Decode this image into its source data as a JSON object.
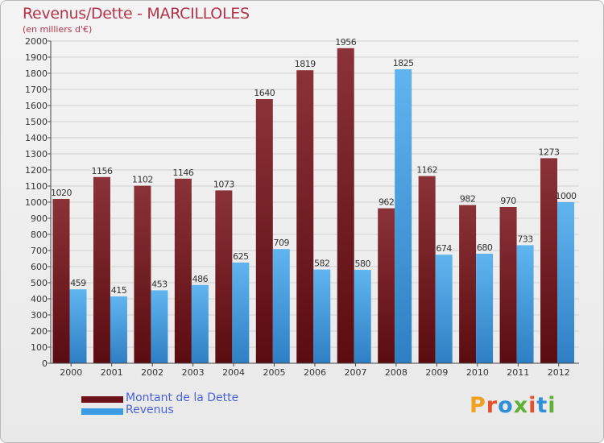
{
  "header": {
    "title": "Revenus/Dette - MARCILLOLES",
    "subtitle": "(en milliers d'€)"
  },
  "legend": {
    "items": [
      {
        "label": "Montant de la Dette",
        "color": "#6b1117"
      },
      {
        "label": "Revenus",
        "color": "#3c9ce3"
      }
    ]
  },
  "logo": {
    "text": "Proxiti",
    "letters": [
      "P",
      "r",
      "o",
      "x",
      "i",
      "t",
      "i"
    ]
  },
  "colors": {
    "title": "#b5344a",
    "debt_top": "#8a3238",
    "debt_bottom": "#5a0c10",
    "revenue_top": "#60b5ef",
    "revenue_bottom": "#2e7fc4",
    "legend_text": "#4a63d8",
    "logo": [
      "#f0a01e",
      "#e8502a",
      "#2f8fd8",
      "#5db133",
      "#e8502a",
      "#2f8fd8",
      "#5db133"
    ]
  },
  "chart_data": {
    "type": "bar",
    "title": "Revenus/Dette - MARCILLOLES",
    "subtitle": "(en milliers d'€)",
    "categories": [
      "2000",
      "2001",
      "2002",
      "2003",
      "2004",
      "2005",
      "2006",
      "2007",
      "2008",
      "2009",
      "2010",
      "2011",
      "2012"
    ],
    "series": [
      {
        "name": "Montant de la Dette",
        "values": [
          1020,
          1156,
          1102,
          1146,
          1073,
          1640,
          1819,
          1956,
          962,
          1162,
          982,
          970,
          1273
        ]
      },
      {
        "name": "Revenus",
        "values": [
          459,
          415,
          453,
          486,
          625,
          709,
          582,
          580,
          1825,
          674,
          680,
          733,
          1000
        ]
      }
    ],
    "ylim": [
      0,
      2000
    ],
    "yticks": [
      0,
      100,
      200,
      300,
      400,
      500,
      600,
      700,
      800,
      900,
      1000,
      1100,
      1200,
      1300,
      1400,
      1500,
      1600,
      1700,
      1800,
      1900,
      2000
    ],
    "grid": true,
    "legend_position": "bottom-left"
  }
}
